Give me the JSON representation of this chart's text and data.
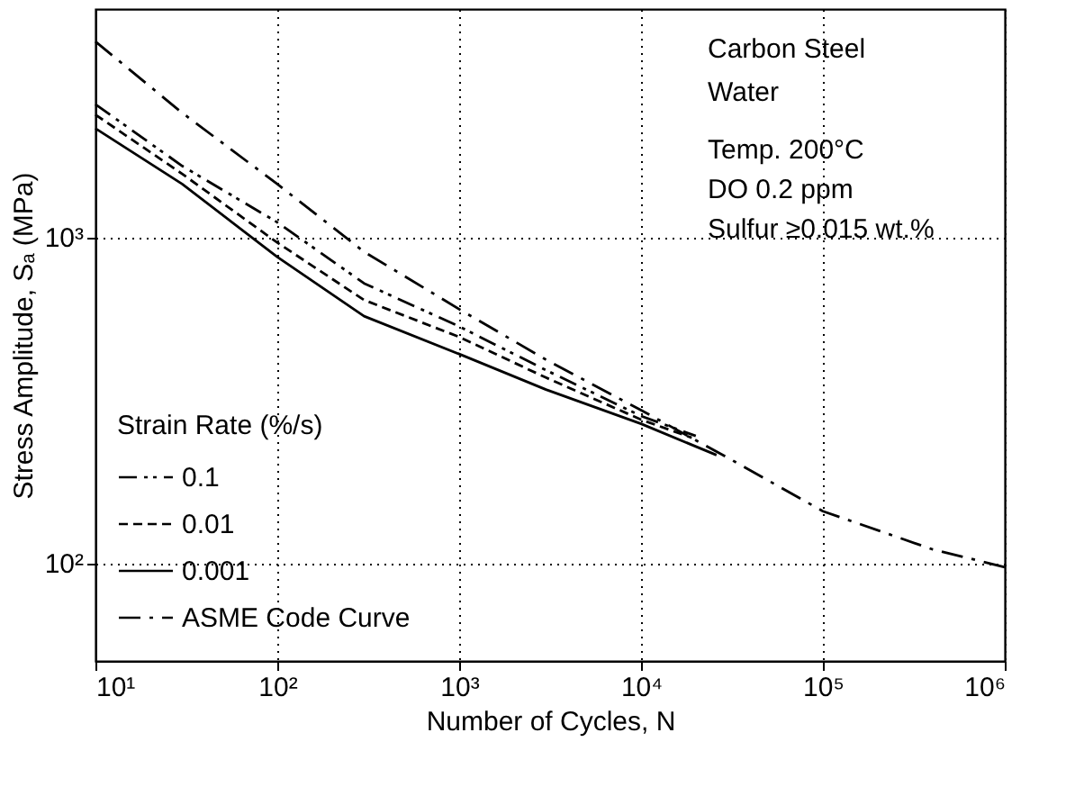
{
  "chart_data": {
    "type": "line",
    "xlabel": "Number of Cycles, N",
    "ylabel": "Stress Amplitude, Sₐ (MPa)",
    "legend_title": "Strain Rate (%/s)",
    "annotations": [
      "Carbon Steel",
      "Water",
      "Temp. 200°C",
      "DO 0.2 ppm",
      "Sulfur ≥0.015 wt.%"
    ],
    "log": "xy",
    "grid": true,
    "legend": "bottom left",
    "marker": "none",
    "xlim": [
      10,
      1000000
    ],
    "ylim": [
      50,
      5000
    ],
    "xticks": [
      {
        "value": 10,
        "label": "10¹"
      },
      {
        "value": 100,
        "label": "10²"
      },
      {
        "value": 1000,
        "label": "10³"
      },
      {
        "value": 10000,
        "label": "10⁴"
      },
      {
        "value": 100000,
        "label": "10⁵"
      },
      {
        "value": 1000000,
        "label": "10⁶"
      }
    ],
    "yticks": [
      {
        "value": 100,
        "label": "10²"
      },
      {
        "value": 1000,
        "label": "10³"
      }
    ],
    "series": [
      {
        "name": "0.1",
        "color": "#000000",
        "line_style": "dashdotdot",
        "x": [
          10,
          30,
          100,
          300,
          1000,
          3000,
          10000,
          20000
        ],
        "values": [
          2550,
          1650,
          1108,
          720,
          531,
          390,
          282,
          245
        ]
      },
      {
        "name": "0.01",
        "color": "#000000",
        "line_style": "dashed",
        "x": [
          10,
          30,
          100,
          300,
          1000,
          3000,
          10000,
          19000
        ],
        "values": [
          2370,
          1560,
          960,
          640,
          493,
          370,
          275,
          242
        ]
      },
      {
        "name": "0.001",
        "color": "#000000",
        "line_style": "solid",
        "x": [
          10,
          30,
          100,
          300,
          1000,
          3000,
          10000,
          26000
        ],
        "values": [
          2150,
          1452,
          867,
          571,
          437,
          340,
          267,
          214
        ]
      },
      {
        "name": "ASME Code Curve",
        "color": "#000000",
        "line_style": "dashdot",
        "x": [
          10,
          30,
          100,
          300,
          1000,
          3000,
          10000,
          30000,
          100000,
          400000,
          1000000
        ],
        "values": [
          3975,
          2400,
          1452,
          900,
          600,
          420,
          294,
          210,
          144,
          110,
          97
        ]
      }
    ]
  }
}
